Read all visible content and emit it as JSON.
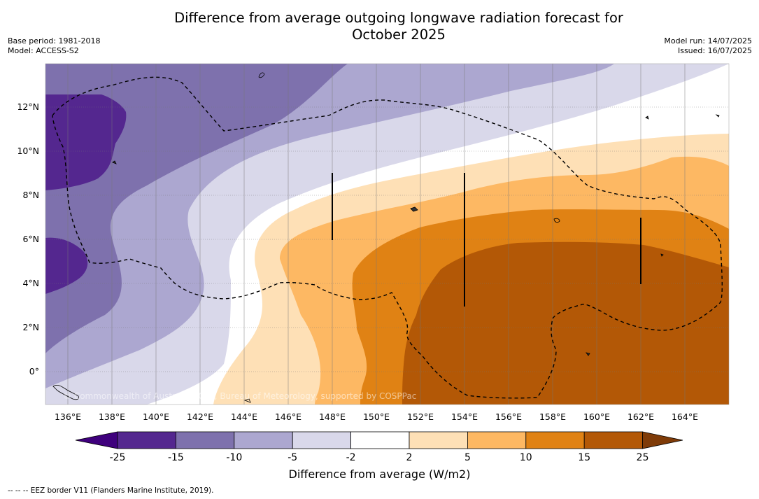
{
  "header": {
    "title_line1": "Difference from average outgoing longwave radiation forecast for",
    "title_line2": "October 2025",
    "base_period": "Base period: 1981-2018",
    "model": "Model: ACCESS-S2",
    "model_run": "Model run: 14/07/2025",
    "issued": "Issued: 16/07/2025"
  },
  "map": {
    "lon_range": [
      135,
      166
    ],
    "lat_range": [
      -1.5,
      14
    ],
    "lon_ticks": [
      "136°E",
      "138°E",
      "140°E",
      "142°E",
      "144°E",
      "146°E",
      "148°E",
      "150°E",
      "152°E",
      "154°E",
      "156°E",
      "158°E",
      "160°E",
      "162°E",
      "164°E"
    ],
    "lat_ticks": [
      "0°",
      "2°N",
      "4°N",
      "6°N",
      "8°N",
      "10°N",
      "12°N"
    ],
    "copyright": "© Commonwealth of Australia 2025, Bureau of Meteorology, supported by COSPPac",
    "border_style": "dashed black EEZ boundary"
  },
  "colorbar": {
    "labels": [
      "-25",
      "-15",
      "-10",
      "-5",
      "-2",
      "2",
      "5",
      "10",
      "15",
      "25"
    ],
    "colors": [
      "#3f007d",
      "#54278f",
      "#7e71ad",
      "#aca7d0",
      "#d9d8ea",
      "#ffffff",
      "#fee0b6",
      "#fdb863",
      "#e08214",
      "#b35806",
      "#7f3b08"
    ],
    "title": "Difference from average (W/m2)"
  },
  "footnote": "-- -- -- EEZ border V11 (Flanders Marine Institute, 2019)."
}
